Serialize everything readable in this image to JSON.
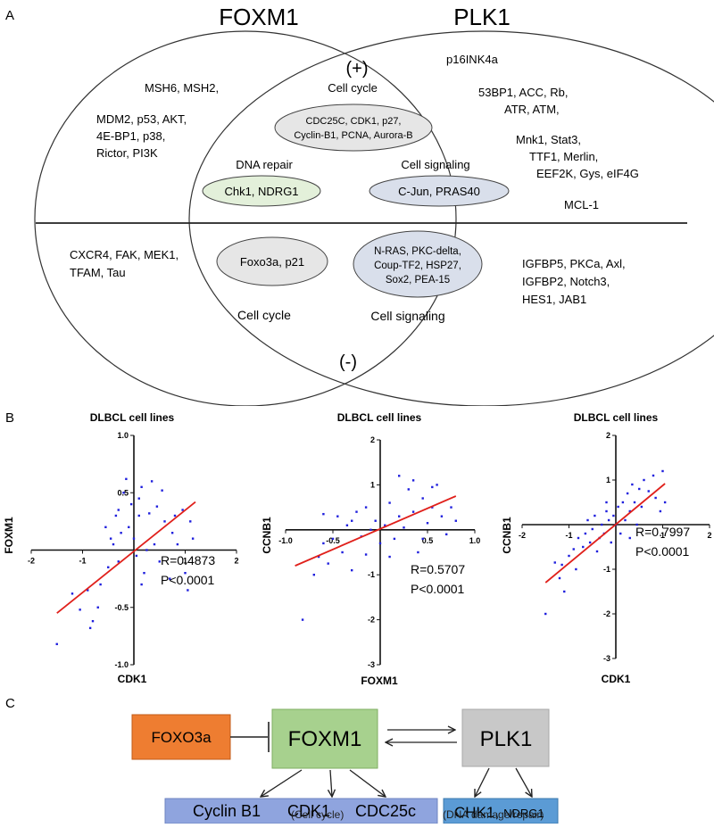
{
  "panel_a": {
    "letter": "A",
    "left_title": "FOXM1",
    "right_title": "PLK1",
    "positive": "(+)",
    "negative": "(-)",
    "left_top_lines": [
      "MSH6, MSH2,",
      "MDM2, p53, AKT,",
      "4E-BP1, p38,",
      "Rictor, PI3K"
    ],
    "right_top_lines": [
      "p16INK4a",
      "53BP1, ACC, Rb,",
      "ATR, ATM,",
      "Mnk1, Stat3,",
      "TTF1, Merlin,",
      "EEF2K, Gys, eIF4G",
      "MCL-1"
    ],
    "cell_cycle_label": "Cell cycle",
    "cell_cycle_lines": [
      "CDC25C, CDK1, p27,",
      "Cyclin-B1, PCNA, Aurora-B"
    ],
    "dna_repair_label": "DNA repair",
    "dna_repair_text": "Chk1, NDRG1",
    "cell_signaling_label": "Cell signaling",
    "cell_signaling_text": "C-Jun, PRAS40",
    "left_bottom_lines": [
      "CXCR4, FAK, MEK1,",
      "TFAM, Tau"
    ],
    "center_bottom_left_text": "Foxo3a, p21",
    "center_bottom_right_lines": [
      "N-RAS, PKC-delta,",
      "Coup-TF2, HSP27,",
      "Sox2, PEA-15"
    ],
    "bottom_cell_cycle_label": "Cell cycle",
    "bottom_cell_signaling_label": "Cell signaling",
    "right_bottom_lines": [
      "IGFBP5, PKCa, Axl,",
      "IGFBP2, Notch3,",
      "HES1, JAB1"
    ],
    "colors": {
      "cell_cycle_fill": "#e6e6e6",
      "dna_repair_fill": "#e3f0da",
      "cell_signaling_fill": "#d9dfeb"
    }
  },
  "panel_b": {
    "letter": "B",
    "charts": [
      {
        "title": "DLBCL cell lines",
        "xlabel": "CDK1",
        "ylabel": "FOXM1",
        "r_text": "R=0.4873",
        "p_text": "P<0.0001"
      },
      {
        "title": "DLBCL cell lines",
        "xlabel": "FOXM1",
        "ylabel": "CCNB1",
        "r_text": "R=0.5707",
        "p_text": "P<0.0001"
      },
      {
        "title": "DLBCL cell lines",
        "xlabel": "CDK1",
        "ylabel": "CCNB1",
        "r_text": "R=0.7997",
        "p_text": "P<0.0001"
      }
    ]
  },
  "chart_data": [
    {
      "type": "scatter",
      "title": "DLBCL cell lines",
      "xlabel": "CDK1",
      "ylabel": "FOXM1",
      "xlim": [
        -2,
        2
      ],
      "ylim": [
        -1.0,
        1.0
      ],
      "xticks": [
        "-2",
        "-1",
        "1",
        "2"
      ],
      "yticks": [
        "1.0",
        "0.5",
        "-0.5",
        "-1.0"
      ],
      "xtick_values": [
        -2,
        -1,
        1,
        2
      ],
      "ytick_values": [
        1.0,
        0.5,
        -0.5,
        -1.0
      ],
      "regression": {
        "x": [
          -1.5,
          1.2
        ],
        "y": [
          -0.55,
          0.42
        ]
      },
      "point_color": "#1f1fdd",
      "line_color": "#e0201b",
      "points": [
        [
          -1.5,
          -0.82
        ],
        [
          -1.2,
          -0.38
        ],
        [
          -1.05,
          -0.52
        ],
        [
          -0.9,
          -0.35
        ],
        [
          -0.85,
          -0.68
        ],
        [
          -0.8,
          -0.62
        ],
        [
          -0.7,
          -0.5
        ],
        [
          -0.65,
          -0.3
        ],
        [
          -0.5,
          -0.15
        ],
        [
          -0.45,
          0.1
        ],
        [
          -0.4,
          0.05
        ],
        [
          -0.35,
          0.3
        ],
        [
          -0.3,
          -0.1
        ],
        [
          -0.3,
          0.35
        ],
        [
          -0.25,
          0.15
        ],
        [
          -0.2,
          0.5
        ],
        [
          -0.15,
          0.62
        ],
        [
          -0.1,
          0.2
        ],
        [
          -0.05,
          0.4
        ],
        [
          0.0,
          0.1
        ],
        [
          0.05,
          -0.05
        ],
        [
          0.1,
          0.45
        ],
        [
          0.1,
          0.3
        ],
        [
          0.15,
          0.55
        ],
        [
          0.2,
          -0.2
        ],
        [
          0.25,
          0.0
        ],
        [
          0.3,
          0.32
        ],
        [
          0.35,
          0.6
        ],
        [
          0.4,
          0.05
        ],
        [
          0.45,
          0.38
        ],
        [
          0.5,
          -0.1
        ],
        [
          0.55,
          0.52
        ],
        [
          0.6,
          0.25
        ],
        [
          0.7,
          -0.25
        ],
        [
          0.75,
          0.15
        ],
        [
          0.8,
          0.3
        ],
        [
          0.85,
          0.05
        ],
        [
          0.95,
          0.35
        ],
        [
          1.0,
          -0.2
        ],
        [
          1.05,
          -0.35
        ],
        [
          1.1,
          0.25
        ],
        [
          1.15,
          0.1
        ],
        [
          0.15,
          -0.3
        ],
        [
          -0.55,
          0.2
        ]
      ]
    },
    {
      "type": "scatter",
      "title": "DLBCL cell lines",
      "xlabel": "FOXM1",
      "ylabel": "CCNB1",
      "xlim": [
        -1.0,
        1.0
      ],
      "ylim": [
        -3,
        2
      ],
      "xticks": [
        "-1.0",
        "-0.5",
        "0.5",
        "1.0"
      ],
      "yticks": [
        "2",
        "1",
        "-1",
        "-2",
        "-3"
      ],
      "xtick_values": [
        -1.0,
        -0.5,
        0.5,
        1.0
      ],
      "ytick_values": [
        2,
        1,
        -1,
        -2,
        -3
      ],
      "regression": {
        "x": [
          -0.9,
          0.8
        ],
        "y": [
          -0.8,
          0.75
        ]
      },
      "point_color": "#1f1fdd",
      "line_color": "#e0201b",
      "points": [
        [
          -0.82,
          -2.0
        ],
        [
          -0.7,
          -1.0
        ],
        [
          -0.65,
          -0.6
        ],
        [
          -0.6,
          -0.3
        ],
        [
          -0.55,
          -0.75
        ],
        [
          -0.5,
          -0.2
        ],
        [
          -0.45,
          0.3
        ],
        [
          -0.4,
          -0.5
        ],
        [
          -0.35,
          0.1
        ],
        [
          -0.3,
          -0.9
        ],
        [
          -0.25,
          0.4
        ],
        [
          -0.2,
          -0.15
        ],
        [
          -0.15,
          0.5
        ],
        [
          -0.1,
          0.0
        ],
        [
          -0.05,
          0.2
        ],
        [
          0.0,
          -0.3
        ],
        [
          0.05,
          0.1
        ],
        [
          0.1,
          0.6
        ],
        [
          0.15,
          -0.2
        ],
        [
          0.2,
          0.3
        ],
        [
          0.25,
          0.05
        ],
        [
          0.3,
          0.9
        ],
        [
          0.35,
          0.4
        ],
        [
          0.4,
          -0.5
        ],
        [
          0.45,
          0.7
        ],
        [
          0.5,
          0.15
        ],
        [
          0.55,
          0.5
        ],
        [
          0.6,
          1.0
        ],
        [
          0.65,
          0.3
        ],
        [
          0.7,
          -0.1
        ],
        [
          0.75,
          0.5
        ],
        [
          0.8,
          0.2
        ],
        [
          0.2,
          1.2
        ],
        [
          0.35,
          1.1
        ],
        [
          -0.6,
          0.35
        ],
        [
          -0.3,
          0.2
        ],
        [
          0.1,
          -0.6
        ],
        [
          0.45,
          -0.2
        ],
        [
          -0.15,
          -0.55
        ],
        [
          0.55,
          0.95
        ]
      ]
    },
    {
      "type": "scatter",
      "title": "DLBCL cell lines",
      "xlabel": "CDK1",
      "ylabel": "CCNB1",
      "xlim": [
        -2,
        2
      ],
      "ylim": [
        -3,
        2
      ],
      "xticks": [
        "-2",
        "-1",
        "1",
        "2"
      ],
      "yticks": [
        "2",
        "1",
        "-1",
        "-2",
        "-3"
      ],
      "xtick_values": [
        -2,
        -1,
        1,
        2
      ],
      "ytick_values": [
        2,
        1,
        -1,
        -2,
        -3
      ],
      "regression": {
        "x": [
          -1.5,
          1.05
        ],
        "y": [
          -1.3,
          0.92
        ]
      },
      "point_color": "#1f1fdd",
      "line_color": "#e0201b",
      "points": [
        [
          -1.5,
          -2.0
        ],
        [
          -1.3,
          -0.85
        ],
        [
          -1.2,
          -1.2
        ],
        [
          -1.15,
          -0.9
        ],
        [
          -1.1,
          -1.5
        ],
        [
          -1.0,
          -0.7
        ],
        [
          -0.9,
          -0.55
        ],
        [
          -0.85,
          -1.0
        ],
        [
          -0.8,
          -0.3
        ],
        [
          -0.7,
          -0.5
        ],
        [
          -0.65,
          -0.2
        ],
        [
          -0.6,
          0.1
        ],
        [
          -0.55,
          -0.4
        ],
        [
          -0.5,
          -0.1
        ],
        [
          -0.45,
          0.2
        ],
        [
          -0.4,
          -0.6
        ],
        [
          -0.35,
          -0.3
        ],
        [
          -0.3,
          0.0
        ],
        [
          -0.25,
          -0.2
        ],
        [
          -0.2,
          0.3
        ],
        [
          -0.15,
          0.1
        ],
        [
          -0.1,
          -0.4
        ],
        [
          -0.05,
          0.2
        ],
        [
          0.0,
          0.0
        ],
        [
          0.05,
          0.4
        ],
        [
          0.1,
          -0.2
        ],
        [
          0.15,
          0.5
        ],
        [
          0.2,
          0.1
        ],
        [
          0.25,
          0.7
        ],
        [
          0.3,
          0.3
        ],
        [
          0.35,
          0.9
        ],
        [
          0.4,
          0.5
        ],
        [
          0.45,
          0.0
        ],
        [
          0.5,
          0.8
        ],
        [
          0.55,
          0.4
        ],
        [
          0.6,
          1.0
        ],
        [
          0.7,
          0.75
        ],
        [
          0.8,
          1.1
        ],
        [
          0.85,
          0.6
        ],
        [
          0.95,
          0.3
        ],
        [
          1.0,
          1.2
        ],
        [
          1.05,
          0.5
        ],
        [
          0.3,
          -0.3
        ],
        [
          -0.2,
          0.5
        ]
      ]
    }
  ],
  "panel_c": {
    "letter": "C",
    "foxo3a": "FOXO3a",
    "foxm1": "FOXM1",
    "plk1": "PLK1",
    "targets": [
      "Cyclin B1",
      "CDK1",
      "CDC25c"
    ],
    "chk1": "CHK1,",
    "ndrg1": "NDRG1",
    "caption_cell_cycle": "(Cell cycle)",
    "caption_dna": "(DNA damage/repair)",
    "colors": {
      "foxo3a": "#ee7d31",
      "foxm1": "#a7d18e",
      "plk1": "#c8c8c8",
      "targets": "#8fa4de",
      "chk1": "#5b9bd5"
    }
  }
}
